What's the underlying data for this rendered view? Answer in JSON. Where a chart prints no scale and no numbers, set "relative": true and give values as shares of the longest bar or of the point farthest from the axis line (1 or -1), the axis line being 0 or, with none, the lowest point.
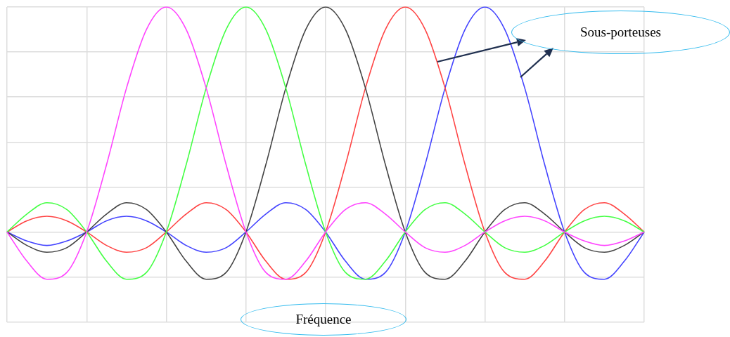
{
  "chart_data": {
    "type": "line",
    "relative": true,
    "grid": true,
    "legend": false,
    "marker": "none",
    "line_style": "solid",
    "categories": [
      null,
      null,
      null,
      null,
      null,
      null,
      null,
      null,
      null,
      null,
      null,
      null,
      null,
      null,
      null,
      null,
      null,
      null,
      null,
      null,
      null,
      null,
      null,
      null,
      null,
      null,
      null,
      null,
      null,
      null,
      null,
      null,
      null
    ],
    "series": [
      {
        "color": "#ff44ff",
        "values": [
          0,
          -0.13,
          -0.21,
          -0.18,
          0,
          0.3,
          0.64,
          0.9,
          1,
          0.9,
          0.64,
          0.3,
          0,
          -0.18,
          -0.21,
          -0.13,
          0,
          0.1,
          0.13,
          0.08,
          0,
          -0.07,
          -0.09,
          -0.06,
          0,
          0.05,
          0.07,
          0.05,
          0,
          -0.04,
          -0.06,
          -0.04,
          0
        ]
      },
      {
        "color": "#44ff44",
        "values": [
          0,
          0.08,
          0.13,
          0.1,
          0,
          -0.13,
          -0.21,
          -0.18,
          0,
          0.3,
          0.64,
          0.9,
          1,
          0.9,
          0.64,
          0.3,
          0,
          -0.18,
          -0.21,
          -0.13,
          0,
          0.1,
          0.13,
          0.08,
          0,
          -0.07,
          -0.09,
          -0.06,
          0,
          0.05,
          0.07,
          0.05,
          0
        ]
      },
      {
        "color": "#444444",
        "values": [
          0,
          -0.06,
          -0.09,
          -0.07,
          0,
          0.08,
          0.13,
          0.1,
          0,
          -0.13,
          -0.21,
          -0.18,
          0,
          0.3,
          0.64,
          0.9,
          1,
          0.9,
          0.64,
          0.3,
          0,
          -0.18,
          -0.21,
          -0.13,
          0,
          0.1,
          0.13,
          0.08,
          0,
          -0.07,
          -0.09,
          -0.06,
          0
        ]
      },
      {
        "color": "#ff4444",
        "values": [
          0,
          0.05,
          0.07,
          0.05,
          0,
          -0.06,
          -0.09,
          -0.07,
          0,
          0.08,
          0.13,
          0.1,
          0,
          -0.13,
          -0.21,
          -0.18,
          0,
          0.3,
          0.64,
          0.9,
          1,
          0.9,
          0.64,
          0.3,
          0,
          -0.18,
          -0.21,
          -0.13,
          0,
          0.1,
          0.13,
          0.08,
          0
        ]
      },
      {
        "color": "#4444ff",
        "values": [
          0,
          -0.04,
          -0.06,
          -0.04,
          0,
          0.05,
          0.07,
          0.05,
          0,
          -0.06,
          -0.09,
          -0.07,
          0,
          0.08,
          0.13,
          0.1,
          0,
          -0.13,
          -0.21,
          -0.18,
          0,
          0.3,
          0.64,
          0.9,
          1,
          0.9,
          0.64,
          0.3,
          0,
          -0.18,
          -0.21,
          -0.13,
          0
        ]
      }
    ],
    "annotations": [
      "Sous-porteuses",
      "Fréquence"
    ]
  }
}
